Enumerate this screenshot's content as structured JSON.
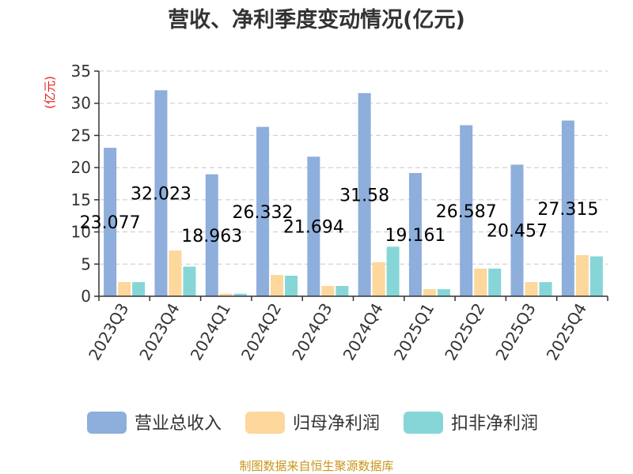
{
  "chart_data": {
    "type": "bar",
    "title": "营收、净利季度变动情况(亿元)",
    "ylabel": "(亿元)",
    "ylim": [
      0,
      35
    ],
    "yticks": [
      0,
      5,
      10,
      15,
      20,
      25,
      30,
      35
    ],
    "grid": true,
    "legend_position": "bottom",
    "categories": [
      "2023Q3",
      "2023Q4",
      "2024Q1",
      "2024Q2",
      "2024Q3",
      "2024Q4",
      "2025Q1",
      "2025Q2",
      "2025Q3",
      "2025Q4"
    ],
    "series": [
      {
        "name": "营业总收入",
        "color": "#8eaedb",
        "values": [
          23.077,
          32.023,
          18.963,
          26.332,
          21.694,
          31.58,
          19.161,
          26.587,
          20.457,
          27.315
        ],
        "labels": [
          "23.077",
          "32.023",
          "18.963",
          "26.332",
          "21.694",
          "31.58",
          "19.161",
          "26.587",
          "20.457",
          "27.315"
        ]
      },
      {
        "name": "归母净利润",
        "color": "#fdd79b",
        "values": [
          2.2,
          7.1,
          0.4,
          3.3,
          1.6,
          5.3,
          1.1,
          4.3,
          2.2,
          6.4
        ]
      },
      {
        "name": "扣非净利润",
        "color": "#86d6d8",
        "values": [
          2.2,
          4.6,
          0.4,
          3.2,
          1.6,
          7.7,
          1.1,
          4.3,
          2.2,
          6.2
        ]
      }
    ]
  },
  "source": "制图数据来自恒生聚源数据库"
}
